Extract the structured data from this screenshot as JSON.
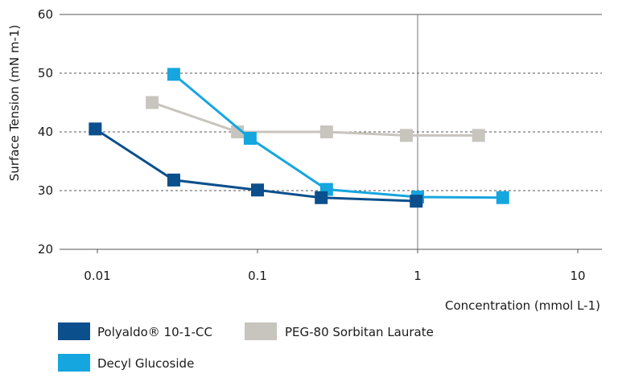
{
  "chart_data": {
    "type": "line",
    "title": "",
    "xlabel": "Concentration (mmol L-1)",
    "ylabel": "Surface Tension (mN m-1)",
    "x_scale": "log",
    "xlim": [
      0.005,
      15
    ],
    "ylim": [
      20,
      60
    ],
    "x_ticks": [
      0.01,
      0.1,
      1,
      10
    ],
    "x_tick_labels": [
      "0.01",
      "0.1",
      "1",
      "10"
    ],
    "y_ticks": [
      20,
      30,
      40,
      50,
      60
    ],
    "y_tick_labels": [
      "20",
      "30",
      "40",
      "50",
      "60"
    ],
    "grid": "horizontal dashed",
    "reference_line_x": 1,
    "legend_position": "bottom",
    "series": [
      {
        "name": "Polyaldo® 10-1-CC",
        "color": "#0b4f8c",
        "points": [
          [
            0.0097,
            40.5
          ],
          [
            0.03,
            31.8
          ],
          [
            0.1,
            30.1
          ],
          [
            0.25,
            28.8
          ],
          [
            0.98,
            28.2
          ]
        ]
      },
      {
        "name": "PEG-80 Sorbitan Laurate",
        "color": "#c8c4be",
        "points": [
          [
            0.022,
            45.0
          ],
          [
            0.075,
            40.0
          ],
          [
            0.27,
            40.0
          ],
          [
            0.85,
            39.4
          ],
          [
            2.4,
            39.4
          ]
        ]
      },
      {
        "name": "Decyl Glucoside",
        "color": "#16a6df",
        "points": [
          [
            0.03,
            49.8
          ],
          [
            0.09,
            38.9
          ],
          [
            0.27,
            30.2
          ],
          [
            1.0,
            28.9
          ],
          [
            3.4,
            28.8
          ]
        ]
      }
    ]
  }
}
